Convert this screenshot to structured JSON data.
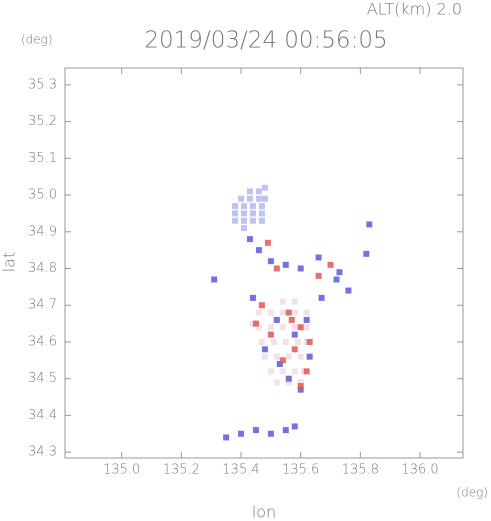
{
  "chart_data": {
    "type": "scatter",
    "title": "2019/03/24 00:56:05",
    "subtitle": "ALT(km) 2.0",
    "y_unit": "(deg)",
    "x_unit": "(deg)",
    "xlabel": "lon",
    "ylabel": "lat",
    "xlim": [
      134.81,
      136.144
    ],
    "ylim": [
      34.284,
      35.346
    ],
    "xticks": [
      {
        "value": 135.0,
        "label": "135.0"
      },
      135.2,
      135.4,
      135.6,
      135.8,
      {
        "value": 136.0,
        "label": "136.0"
      }
    ],
    "yticks": [
      35.3,
      35.2,
      35.1,
      {
        "value": 35.0,
        "label": "35.0"
      },
      34.9,
      34.8,
      34.7,
      34.6,
      34.5,
      34.4,
      34.3
    ],
    "series": [
      {
        "color": "#b4b8f0",
        "x": [
          135.38,
          135.41,
          135.44,
          135.47,
          135.38,
          135.41,
          135.44,
          135.47,
          135.38,
          135.41,
          135.44,
          135.47,
          135.4,
          135.43,
          135.46,
          135.48,
          135.43,
          135.46,
          135.48,
          135.41
        ],
        "y": [
          34.93,
          34.93,
          34.93,
          34.93,
          34.95,
          34.95,
          34.95,
          34.95,
          34.97,
          34.97,
          34.97,
          34.97,
          34.99,
          34.99,
          34.99,
          34.99,
          35.01,
          35.01,
          35.02,
          34.91
        ]
      },
      {
        "color": "#f2dbe4",
        "x": [
          135.46,
          135.5,
          135.54,
          135.58,
          135.62,
          135.46,
          135.5,
          135.54,
          135.58,
          135.62,
          135.47,
          135.51,
          135.55,
          135.59,
          135.62,
          135.48,
          135.52,
          135.56,
          135.6,
          135.63,
          135.5,
          135.54,
          135.58,
          135.61,
          135.52,
          135.56,
          135.6,
          135.54,
          135.58,
          135.44
        ],
        "y": [
          34.68,
          34.68,
          34.68,
          34.68,
          34.68,
          34.64,
          34.64,
          34.64,
          34.64,
          34.64,
          34.6,
          34.6,
          34.6,
          34.6,
          34.6,
          34.56,
          34.56,
          34.56,
          34.56,
          34.56,
          34.52,
          34.52,
          34.52,
          34.52,
          34.49,
          34.49,
          34.49,
          34.71,
          34.71,
          34.65
        ]
      },
      {
        "color": "#5a5ad8",
        "x": [
          135.43,
          135.46,
          135.5,
          135.55,
          135.6,
          135.66,
          135.72,
          135.76,
          135.82,
          135.83,
          135.52,
          135.58,
          135.63,
          135.48,
          135.56,
          135.62,
          135.35,
          135.4,
          135.45,
          135.5,
          135.55,
          135.58,
          135.31,
          135.67,
          135.73,
          135.44,
          135.53,
          135.6
        ],
        "y": [
          34.88,
          34.85,
          34.82,
          34.81,
          34.8,
          34.83,
          34.77,
          34.74,
          34.84,
          34.92,
          34.66,
          34.62,
          34.56,
          34.58,
          34.5,
          34.66,
          34.34,
          34.35,
          34.36,
          34.35,
          34.36,
          34.37,
          34.77,
          34.72,
          34.79,
          34.72,
          34.54,
          34.47
        ]
      },
      {
        "color": "#e05656",
        "x": [
          135.49,
          135.52,
          135.57,
          135.6,
          135.63,
          135.45,
          135.5,
          135.58,
          135.62,
          135.66,
          135.7,
          135.54,
          135.47,
          135.6,
          135.56
        ],
        "y": [
          34.87,
          34.8,
          34.66,
          34.64,
          34.6,
          34.65,
          34.62,
          34.58,
          34.52,
          34.78,
          34.81,
          34.55,
          34.7,
          34.48,
          34.68
        ]
      }
    ]
  }
}
